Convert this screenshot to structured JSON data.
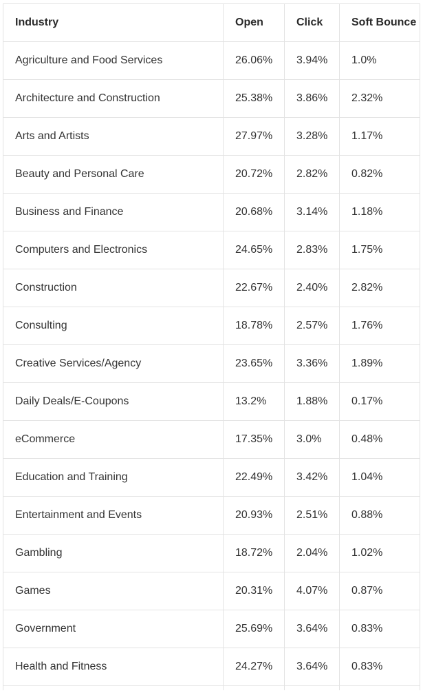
{
  "table": {
    "headers": [
      "Industry",
      "Open",
      "Click",
      "Soft Bounce"
    ],
    "rows": [
      [
        "Agriculture and Food Services",
        "26.06%",
        "3.94%",
        "1.0%"
      ],
      [
        "Architecture and Construction",
        "25.38%",
        "3.86%",
        "2.32%"
      ],
      [
        "Arts and Artists",
        "27.97%",
        "3.28%",
        "1.17%"
      ],
      [
        "Beauty and Personal Care",
        "20.72%",
        "2.82%",
        "0.82%"
      ],
      [
        "Business and Finance",
        "20.68%",
        "3.14%",
        "1.18%"
      ],
      [
        "Computers and Electronics",
        "24.65%",
        "2.83%",
        "1.75%"
      ],
      [
        "Construction",
        "22.67%",
        "2.40%",
        "2.82%"
      ],
      [
        "Consulting",
        "18.78%",
        "2.57%",
        "1.76%"
      ],
      [
        "Creative Services/Agency",
        "23.65%",
        "3.36%",
        "1.89%"
      ],
      [
        "Daily Deals/E-Coupons",
        "13.2%",
        "1.88%",
        "0.17%"
      ],
      [
        "eCommerce",
        "17.35%",
        "3.0%",
        "0.48%"
      ],
      [
        "Education and Training",
        "22.49%",
        "3.42%",
        "1.04%"
      ],
      [
        "Entertainment and Events",
        "20.93%",
        "2.51%",
        "0.88%"
      ],
      [
        "Gambling",
        "18.72%",
        "2.04%",
        "1.02%"
      ],
      [
        "Games",
        "20.31%",
        "4.07%",
        "0.87%"
      ],
      [
        "Government",
        "25.69%",
        "3.64%",
        "0.83%"
      ],
      [
        "Health and Fitness",
        "24.27%",
        "3.64%",
        "0.83%"
      ]
    ]
  },
  "colors": {
    "border": "#e3e3e3",
    "text": "#333333",
    "header_text": "#2a2a2a",
    "background": "#ffffff"
  }
}
